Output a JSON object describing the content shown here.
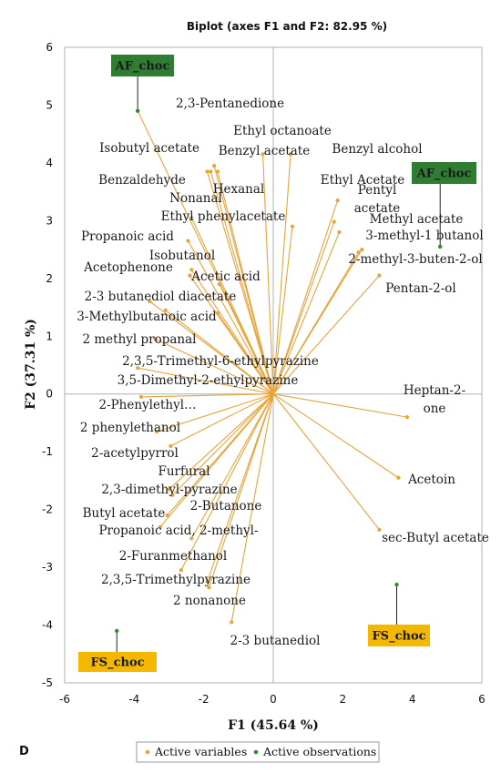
{
  "chart_data": {
    "type": "scatter",
    "title": "Biplot (axes F1 and F2: 82.95 %)",
    "xlabel": "F1 (45.64 %)",
    "ylabel": "F2 (37.31 %)",
    "xlim": [
      -6,
      6
    ],
    "ylim": [
      -5,
      6
    ],
    "xticks": [
      "-6",
      "-4",
      "-2",
      "0",
      "2",
      "4",
      "6"
    ],
    "yticks": [
      "-5",
      "-4",
      "-3",
      "-2",
      "-1",
      "0",
      "1",
      "2",
      "3",
      "4",
      "5",
      "6"
    ],
    "panel_label": "D",
    "colors": {
      "variables": "#e8a33a",
      "observations": "#2e8b2e",
      "af_box": "#2e7d32",
      "fs_box": "#f5b800",
      "frame": "#b0b0b0"
    },
    "variables": [
      {
        "label": "2,3-Pentanedione",
        "x": -3.9,
        "y": 4.9
      },
      {
        "label": "Ethyl octanoate",
        "x": -0.3,
        "y": 4.15
      },
      {
        "label": "Benzyl acetate",
        "x": 0.5,
        "y": 4.15
      },
      {
        "label": "Isobutyl acetate",
        "x": -1.7,
        "y": 3.95
      },
      {
        "label": "Benzyl alcohol",
        "x": -1.8,
        "y": 3.85
      },
      {
        "label": "Benzaldehyde",
        "x": -1.6,
        "y": 3.85
      },
      {
        "label": "Hexanal",
        "x": -1.9,
        "y": 3.85
      },
      {
        "label": "Ethyl Acetate",
        "x": 1.85,
        "y": 3.35
      },
      {
        "label": "Nonanal",
        "x": -2.35,
        "y": 3.05
      },
      {
        "label": "Ethyl phenylacetate",
        "x": 0.55,
        "y": 2.9
      },
      {
        "label": "Pentyl acetate",
        "x": 1.75,
        "y": 2.98
      },
      {
        "label": "Methyl acetate",
        "x": 1.9,
        "y": 2.8
      },
      {
        "label": "Propanoic acid",
        "x": -2.45,
        "y": 2.65
      },
      {
        "label": "3-methyl-1 butanol",
        "x": 2.55,
        "y": 2.5
      },
      {
        "label": "2-methyl-3-buten-2-ol",
        "x": 2.45,
        "y": 2.45
      },
      {
        "label": "Isobutanol",
        "x": -2.35,
        "y": 2.15
      },
      {
        "label": "Acetophenone",
        "x": -2.4,
        "y": 2.05
      },
      {
        "label": "Pentan-2-ol",
        "x": 3.05,
        "y": 2.05
      },
      {
        "label": "Acetic acid",
        "x": -1.55,
        "y": 1.9
      },
      {
        "label": "2-3 butanediol diacetate",
        "x": -3.55,
        "y": 1.6
      },
      {
        "label": "3-Methylbutanoic acid",
        "x": -1.6,
        "y": 1.4
      },
      {
        "label": "2 methyl propanal",
        "x": -3.1,
        "y": 1.45
      },
      {
        "label": "2,3,5-Trimethyl-6-ethylpyrazine",
        "x": -3.4,
        "y": 0.95
      },
      {
        "label": "3,5-Dimethyl-2-ethylpyrazine",
        "x": -3.9,
        "y": 0.45
      },
      {
        "label": "2-Phenylethyl…",
        "x": -3.8,
        "y": -0.05
      },
      {
        "label": "2 phenylethanol",
        "x": -3.35,
        "y": -0.65
      },
      {
        "label": "2-acetylpyrrol",
        "x": -2.95,
        "y": -0.9
      },
      {
        "label": "Furfural",
        "x": -3.0,
        "y": -1.65
      },
      {
        "label": "2,3-dimethyl-pyrazine",
        "x": -2.9,
        "y": -1.75
      },
      {
        "label": "Butyl acetate",
        "x": -3.25,
        "y": -2.3
      },
      {
        "label": "2-Butanone",
        "x": -3.05,
        "y": -2.1
      },
      {
        "label": "Propanoic acid, 2-methyl-",
        "x": -2.35,
        "y": -2.5
      },
      {
        "label": "2-Furanmethanol",
        "x": -2.65,
        "y": -3.05
      },
      {
        "label": "2,3,5-Trimethylpyrazine",
        "x": -1.9,
        "y": -3.25
      },
      {
        "label": "2 nonanone",
        "x": -1.85,
        "y": -3.35
      },
      {
        "label": "2-3 butanediol",
        "x": -1.2,
        "y": -3.95
      },
      {
        "label": "Heptan-2-one",
        "x": 3.85,
        "y": -0.4
      },
      {
        "label": "Acetoin",
        "x": 3.6,
        "y": -1.45
      },
      {
        "label": "sec-Butyl acetate",
        "x": 3.05,
        "y": -2.35
      }
    ],
    "observations": [
      {
        "label": "AF_choc",
        "x": -3.9,
        "y": 4.9
      },
      {
        "label": "AF_choc",
        "x": 4.8,
        "y": 2.55
      },
      {
        "label": "FS_choc",
        "x": -4.5,
        "y": -4.1
      },
      {
        "label": "FS_choc",
        "x": 3.55,
        "y": -3.3
      }
    ],
    "legend": [
      "Active variables",
      "Active observations"
    ],
    "legend_position": "bottom"
  }
}
